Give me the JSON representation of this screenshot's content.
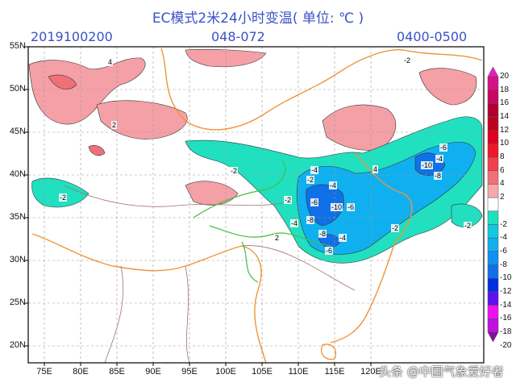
{
  "header": {
    "title": "EC模式2米24小时变温( 单位: ℃ )",
    "init_time": "2019100200",
    "forecast_hours": "048-072",
    "valid_period": "0400-0500"
  },
  "map": {
    "lat_ticks": [
      "55N",
      "50N",
      "45N",
      "40N",
      "35N",
      "30N",
      "25N",
      "20N"
    ],
    "lon_ticks": [
      "75E",
      "80E",
      "85E",
      "90E",
      "95E",
      "100E",
      "105E",
      "110E",
      "115E",
      "120E"
    ],
    "grid": "dashed",
    "colors": {
      "warming": "#f08088",
      "cooling": "#10c0e8",
      "strong_cooling": "#1070e8",
      "province_border": "#f0943a",
      "river": "#40c040",
      "country_border": "#a07070"
    },
    "contour_labels": [
      "-2",
      "-4",
      "-6",
      "-8",
      "-10",
      "-6",
      "-4",
      "-2",
      "2",
      "4",
      "-2",
      "-4",
      "-8",
      "-6",
      "-4",
      "-2",
      "2",
      "-2",
      "-4",
      "-6",
      "-10",
      "-8",
      "-2",
      "4",
      "-2"
    ]
  },
  "colorbar": {
    "labels": [
      "20",
      "18",
      "16",
      "14",
      "12",
      "10",
      "8",
      "6",
      "4",
      "2",
      "-2",
      "-4",
      "-6",
      "-8",
      "-10",
      "-12",
      "-14",
      "-16",
      "-18",
      "-20"
    ],
    "colors": [
      "#e020c0",
      "#d8108a",
      "#c80860",
      "#b00030",
      "#c00020",
      "#e00020",
      "#f01828",
      "#f04050",
      "#f07078",
      "#f8a8a8",
      "#ffffff",
      "#20e0c0",
      "#10c8e0",
      "#10b0f0",
      "#1090f0",
      "#1070e8",
      "#0030e0",
      "#6010f0",
      "#f010f0",
      "#c010e0",
      "#8010a0"
    ]
  },
  "watermark": "头条 @中国气象爱好者"
}
